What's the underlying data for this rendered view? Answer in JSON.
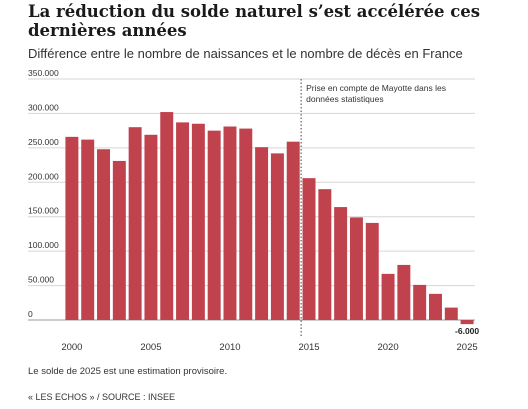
{
  "header": {
    "title": "La réduction du solde naturel s’est accélérée ces dernières années",
    "subtitle": "Différence entre le nombre de naissances et le nombre de décès en France"
  },
  "footer": {
    "note": "Le solde de 2025 est une estimation provisoire.",
    "source": "« LES ECHOS » / SOURCE : INSEE"
  },
  "colors": {
    "bar": "#c0424d",
    "grid": "#d6d6d6",
    "text": "#333333"
  },
  "chart_data": {
    "type": "bar",
    "title": "La réduction du solde naturel s’est accélérée ces dernières années",
    "subtitle": "Différence entre le nombre de naissances et le nombre de décès en France",
    "x": [
      2000,
      2001,
      2002,
      2003,
      2004,
      2005,
      2006,
      2007,
      2008,
      2009,
      2010,
      2011,
      2012,
      2013,
      2014,
      2015,
      2016,
      2017,
      2018,
      2019,
      2020,
      2021,
      2022,
      2023,
      2024,
      2025
    ],
    "values": [
      266000,
      262000,
      248000,
      231000,
      280000,
      269000,
      302000,
      287000,
      285000,
      275000,
      281000,
      278000,
      251000,
      242000,
      259000,
      206000,
      190000,
      164000,
      149000,
      141000,
      67000,
      80000,
      51000,
      38000,
      18000,
      -6000
    ],
    "ylim": [
      -6000,
      350000
    ],
    "yticks": [
      0,
      50000,
      100000,
      150000,
      200000,
      250000,
      300000,
      350000
    ],
    "ytick_labels": [
      "0",
      "50.000",
      "100.000",
      "150.000",
      "200.000",
      "250.000",
      "300.000",
      "350.000"
    ],
    "xticks": [
      2000,
      2005,
      2010,
      2015,
      2020,
      2025
    ],
    "xtick_labels": [
      "2000",
      "2005",
      "2010",
      "2015",
      "2020",
      "2025"
    ],
    "xlabel": "",
    "ylabel": "",
    "grid": true,
    "annotations": [
      {
        "x": 2014,
        "type": "vline",
        "text_lines": [
          "Prise en compte de Mayotte dans les",
          "données statistiques"
        ]
      }
    ],
    "data_labels": [
      {
        "x": 2025,
        "text": "-6.000"
      }
    ]
  }
}
